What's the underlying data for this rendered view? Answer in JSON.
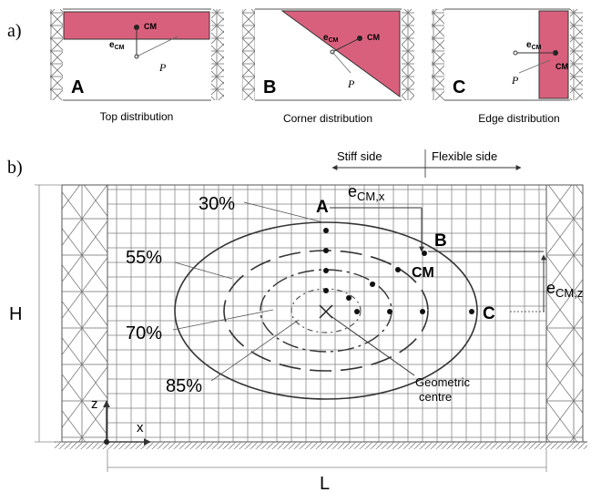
{
  "part_a": {
    "label": "a)",
    "panels": [
      {
        "letter": "A",
        "caption": "Top distribution",
        "cm": "CM",
        "ecm_main": "e",
        "ecm_sub": "CM",
        "p": "P"
      },
      {
        "letter": "B",
        "caption": "Corner distribution",
        "cm": "CM",
        "ecm_main": "e",
        "ecm_sub": "CM",
        "p": "P"
      },
      {
        "letter": "C",
        "caption": "Edge distribution",
        "cm": "CM",
        "ecm_main": "e",
        "ecm_sub": "CM",
        "p": "P"
      }
    ]
  },
  "part_b": {
    "label": "b)",
    "stiff_side": "Stiff side",
    "flexible_side": "Flexible side",
    "ecmx_main": "e",
    "ecmx_sub": "CM,x",
    "ecmz_main": "e",
    "ecmz_sub": "CM,z",
    "contours": [
      "30%",
      "55%",
      "70%",
      "85%"
    ],
    "points": {
      "a": "A",
      "b": "B",
      "c": "C",
      "cm": "CM"
    },
    "geometric_centre_line1": "Geometric",
    "geometric_centre_line2": "centre",
    "dim_h": "H",
    "dim_l": "L",
    "axis_z": "z",
    "axis_x": "x"
  },
  "colors": {
    "mass_fill": "#d9607c",
    "line": "#333333",
    "grid": "#888888"
  }
}
